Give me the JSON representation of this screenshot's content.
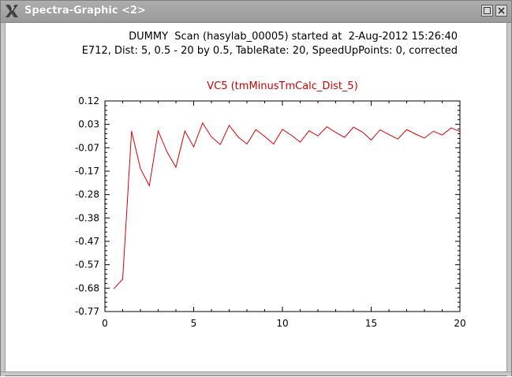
{
  "window": {
    "title": "Spectra-Graphic <2>",
    "icons": {
      "app": "x-logo-icon",
      "minimize": "minimize-icon",
      "close": "close-icon"
    }
  },
  "header": {
    "line1": "DUMMY  Scan (hasylab_00005) started at  2-Aug-2012 15:26:40",
    "line2": "E712, Dist: 5, 0.5 - 20 by 0.5, TableRate: 20, SpeedUpPoints: 0, corrected"
  },
  "chart_data": {
    "type": "line",
    "title": "VC5 (tmMinusTmCalc_Dist_5)",
    "title_color": "#cc0000",
    "series_color": "#dd0000",
    "xlim": [
      0,
      20
    ],
    "ylim": [
      -0.77,
      0.12
    ],
    "x_ticks": [
      "0",
      "5",
      "10",
      "15",
      "20"
    ],
    "y_ticks": [
      "0.12",
      "0.03",
      "-0.07",
      "-0.17",
      "-0.28",
      "-0.38",
      "-0.47",
      "-0.57",
      "-0.68",
      "-0.77"
    ],
    "x": [
      0.5,
      1,
      1.5,
      2,
      2.5,
      3,
      3.5,
      4,
      4.5,
      5,
      5.5,
      6,
      6.5,
      7,
      7.5,
      8,
      8.5,
      9,
      9.5,
      10,
      10.5,
      11,
      11.5,
      12,
      12.5,
      13,
      13.5,
      14,
      14.5,
      15,
      15.5,
      16,
      16.5,
      17,
      17.5,
      18,
      18.5,
      19,
      19.5,
      20
    ],
    "y": [
      -0.674,
      -0.633,
      -0.007,
      -0.166,
      -0.238,
      -0.007,
      -0.096,
      -0.16,
      -0.007,
      -0.074,
      0.027,
      -0.032,
      -0.064,
      0.017,
      -0.032,
      -0.062,
      -0.001,
      -0.03,
      -0.062,
      0.0,
      -0.025,
      -0.054,
      -0.006,
      -0.028,
      0.011,
      -0.013,
      -0.034,
      0.009,
      -0.011,
      -0.045,
      -0.002,
      -0.022,
      -0.041,
      -0.001,
      -0.02,
      -0.037,
      -0.008,
      -0.024,
      0.006,
      -0.009
    ]
  }
}
